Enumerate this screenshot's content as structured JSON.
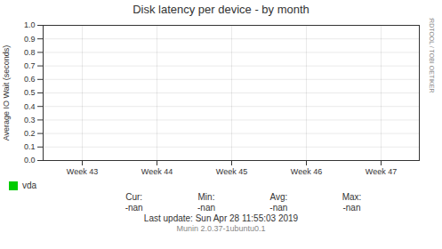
{
  "chart_data": {
    "type": "line",
    "title": "Disk latency per device - by month",
    "ylabel": "Average IO Wait (seconds)",
    "categories": [
      "Week 43",
      "Week 44",
      "Week 45",
      "Week 46",
      "Week 47"
    ],
    "series": [
      {
        "name": "vda",
        "color": "#00cc00",
        "values": [
          null,
          null,
          null,
          null,
          null
        ]
      }
    ],
    "ylim": [
      0.0,
      1.0
    ],
    "yticks": [
      {
        "value": 0.0,
        "label": "0.0"
      },
      {
        "value": 0.1,
        "label": "0.1"
      },
      {
        "value": 0.2,
        "label": "0.2"
      },
      {
        "value": 0.3,
        "label": "0.3"
      },
      {
        "value": 0.4,
        "label": "0.4"
      },
      {
        "value": 0.5,
        "label": "0.5"
      },
      {
        "value": 0.6,
        "label": "0.6"
      },
      {
        "value": 0.7,
        "label": "0.7"
      },
      {
        "value": 0.8,
        "label": "0.8"
      },
      {
        "value": 0.9,
        "label": "0.9"
      },
      {
        "value": 1.0,
        "label": "1.0"
      }
    ],
    "grid": true,
    "legend": "bottom",
    "stats": [
      {
        "label": "Cur:",
        "value": "-nan"
      },
      {
        "label": "Min:",
        "value": "-nan"
      },
      {
        "label": "Avg:",
        "value": "-nan"
      },
      {
        "label": "Max:",
        "value": "-nan"
      }
    ],
    "annotations": [
      "RRDTOOL / TOBI OETIKER",
      "Last update: Sun Apr 28 11:55:03 2019",
      "Munin 2.0.37-1ubuntu0.1"
    ]
  }
}
